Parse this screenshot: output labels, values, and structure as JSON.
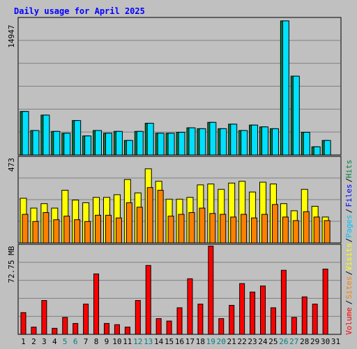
{
  "colors": {
    "hits": "#008040",
    "files": "#00e0ff",
    "pages": "#00c0ff",
    "visits": "#ffff00",
    "sites": "#ff8000",
    "volume": "#ff0000",
    "title": "#0000ff",
    "background": "#c0c0c0",
    "plot_bg": "#c0c0c0",
    "grid": "#808080",
    "weekend_label": "#008080"
  },
  "chart_data": [
    {
      "type": "bar",
      "title": "Daily usage for April 2025",
      "panel": "hits-files",
      "ylabel": "14947",
      "ylim": [
        0,
        14947
      ],
      "legend": [
        "Hits",
        "Files",
        "Pages"
      ],
      "categories": [
        "1",
        "2",
        "3",
        "4",
        "5",
        "6",
        "7",
        "8",
        "9",
        "10",
        "11",
        "12",
        "13",
        "14",
        "15",
        "16",
        "17",
        "18",
        "19",
        "20",
        "21",
        "22",
        "23",
        "24",
        "25",
        "26",
        "27",
        "28",
        "29",
        "30"
      ],
      "series": [
        {
          "name": "Hits",
          "values": [
            4800,
            2700,
            4400,
            2600,
            2400,
            3800,
            2100,
            2700,
            2400,
            2600,
            1600,
            2600,
            3500,
            2400,
            2400,
            2500,
            3000,
            2900,
            3600,
            2900,
            3400,
            2700,
            3300,
            3100,
            2900,
            14800,
            8700,
            2500,
            900,
            1600
          ]
        },
        {
          "name": "Files",
          "values": [
            4800,
            2700,
            4400,
            2600,
            2400,
            3800,
            2100,
            2700,
            2400,
            2600,
            1600,
            2600,
            3500,
            2400,
            2400,
            2500,
            3000,
            2900,
            3600,
            2900,
            3400,
            2700,
            3300,
            3100,
            2900,
            14800,
            8700,
            2500,
            900,
            1600
          ]
        }
      ]
    },
    {
      "type": "bar",
      "panel": "pages-visits-sites",
      "ylabel": "473",
      "ylim": [
        0,
        473
      ],
      "legend": [
        "Visits",
        "Sites"
      ],
      "categories": [
        "1",
        "2",
        "3",
        "4",
        "5",
        "6",
        "7",
        "8",
        "9",
        "10",
        "11",
        "12",
        "13",
        "14",
        "15",
        "16",
        "17",
        "18",
        "19",
        "20",
        "21",
        "22",
        "23",
        "24",
        "25",
        "26",
        "27",
        "28",
        "29",
        "30"
      ],
      "series": [
        {
          "name": "Visits",
          "values": [
            250,
            195,
            220,
            195,
            295,
            240,
            225,
            255,
            255,
            270,
            355,
            280,
            415,
            345,
            245,
            245,
            255,
            325,
            330,
            300,
            335,
            345,
            285,
            340,
            330,
            220,
            180,
            300,
            205,
            145
          ]
        },
        {
          "name": "Sites",
          "values": [
            160,
            120,
            170,
            130,
            150,
            130,
            120,
            155,
            155,
            140,
            225,
            200,
            310,
            295,
            150,
            160,
            170,
            195,
            165,
            160,
            145,
            160,
            140,
            160,
            215,
            145,
            125,
            175,
            145,
            125
          ]
        }
      ]
    },
    {
      "type": "bar",
      "panel": "volume",
      "ylabel": "72.75 MB",
      "ylim": [
        0,
        72.75
      ],
      "legend": [
        "Volume"
      ],
      "categories": [
        "1",
        "2",
        "3",
        "4",
        "5",
        "6",
        "7",
        "8",
        "9",
        "10",
        "11",
        "12",
        "13",
        "14",
        "15",
        "16",
        "17",
        "18",
        "19",
        "20",
        "21",
        "22",
        "23",
        "24",
        "25",
        "26",
        "27",
        "28",
        "29",
        "30"
      ],
      "series": [
        {
          "name": "Volume",
          "values": [
            18,
            6,
            28,
            5,
            14,
            9,
            25,
            50,
            9,
            8,
            6,
            28,
            57,
            13,
            11,
            22,
            46,
            25,
            73,
            13,
            24,
            42,
            35,
            40,
            22,
            53,
            14,
            31,
            25,
            54
          ]
        }
      ]
    }
  ],
  "axis": {
    "day_labels": [
      "1",
      "2",
      "3",
      "4",
      "5",
      "6",
      "7",
      "8",
      "9",
      "10",
      "11",
      "12",
      "13",
      "14",
      "15",
      "16",
      "17",
      "18",
      "19",
      "20",
      "21",
      "22",
      "23",
      "24",
      "25",
      "26",
      "27",
      "28",
      "29",
      "30",
      "31"
    ],
    "weekend_days": [
      "5",
      "6",
      "12",
      "13",
      "19",
      "20",
      "26",
      "27"
    ]
  },
  "legend_right": {
    "top": [
      "Hits",
      "Files",
      "Pages"
    ],
    "mid_visits": "Visits",
    "mid_sites": "Sites",
    "bottom_volume": "Volume",
    "separator": "/"
  }
}
